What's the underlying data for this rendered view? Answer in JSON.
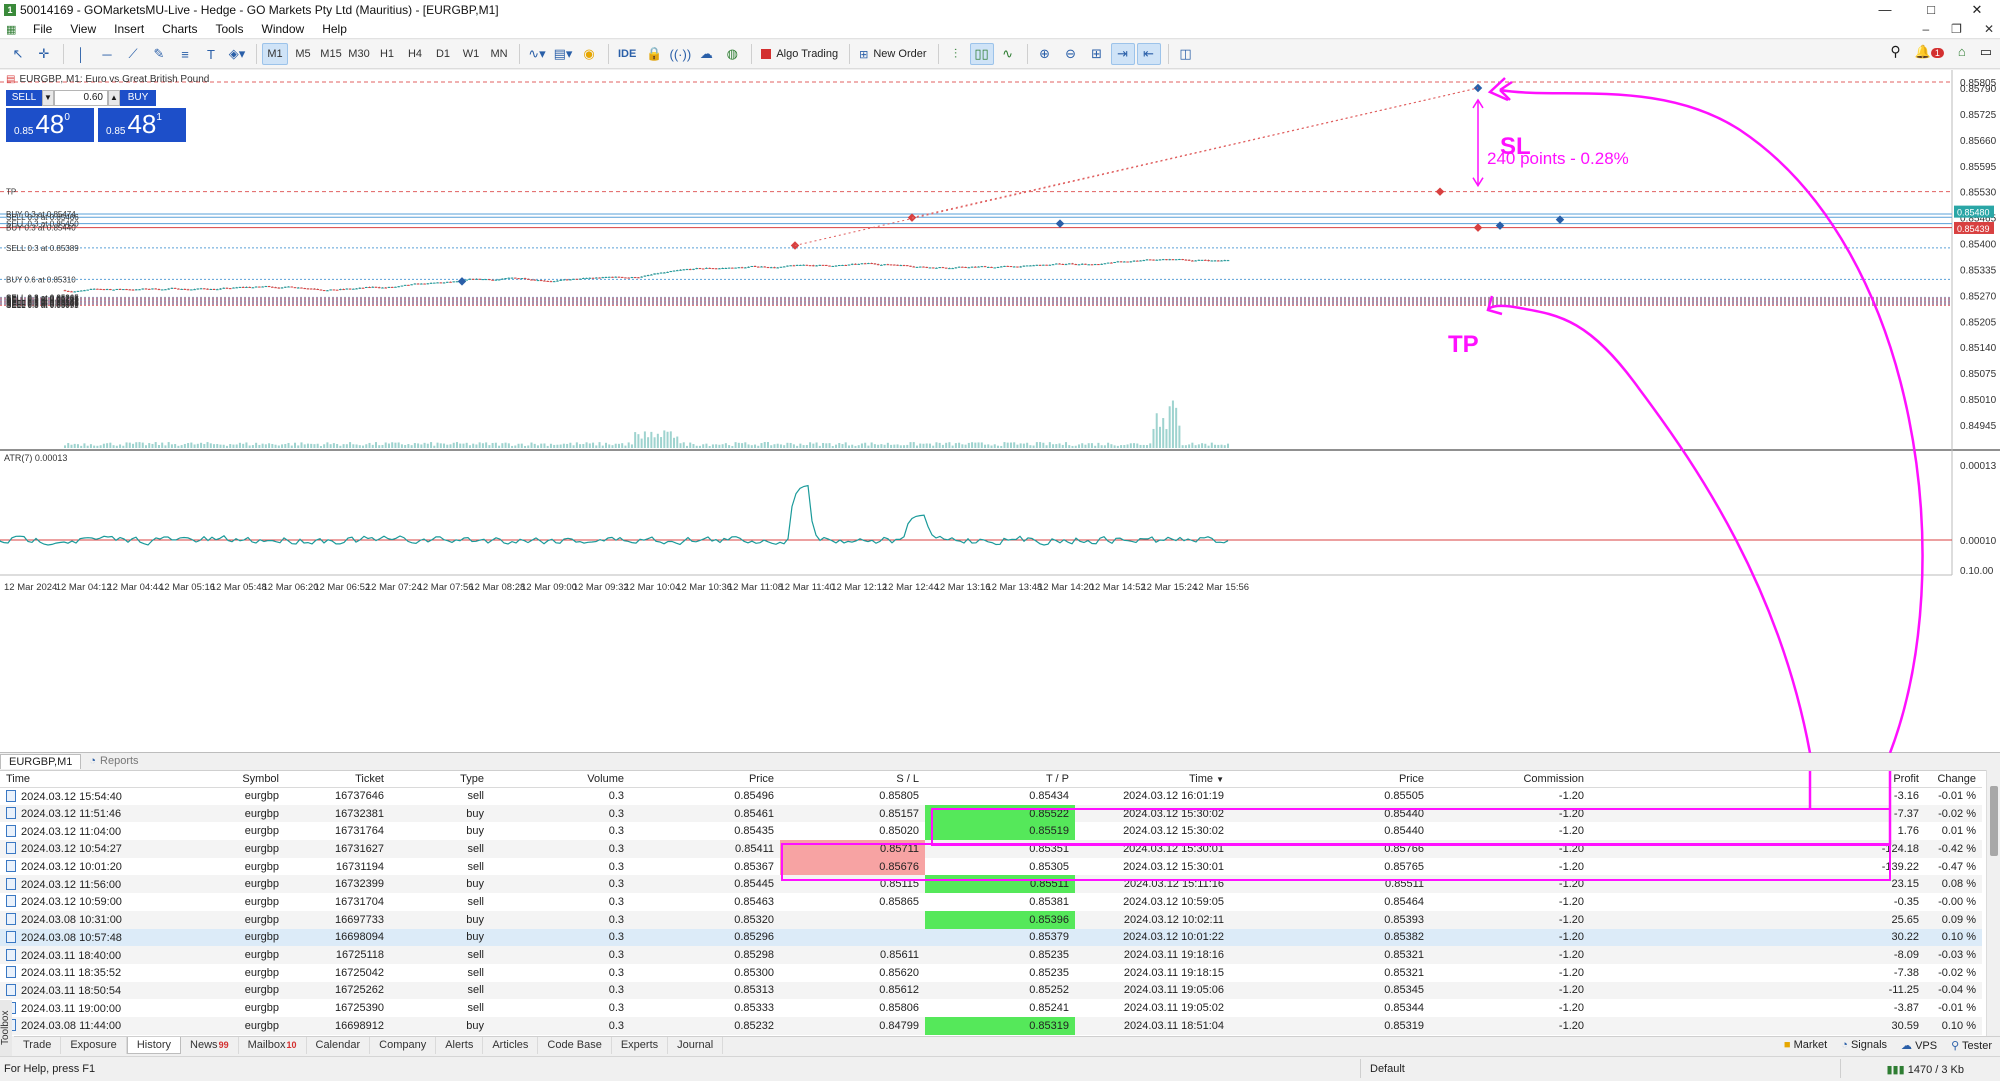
{
  "window": {
    "title": "50014169 - GOMarketsMU-Live - Hedge - GO Markets Pty Ltd (Mauritius) - [EURGBP,M1]",
    "controls": [
      "—",
      "□",
      "✕"
    ]
  },
  "menu": [
    "File",
    "View",
    "Insert",
    "Charts",
    "Tools",
    "Window",
    "Help"
  ],
  "toolbar": {
    "timeframes": [
      "M1",
      "M5",
      "M15",
      "M30",
      "H1",
      "H4",
      "D1",
      "W1",
      "MN"
    ],
    "active_timeframe": "M1",
    "ide_label": "IDE",
    "algo_trading_label": "Algo Trading",
    "new_order_label": "New Order",
    "notification_count": "1"
  },
  "chart": {
    "symbol_line": "EURGBP, M1:  Euro vs Great British Pound",
    "trade_panel": {
      "sell_label": "SELL",
      "buy_label": "BUY",
      "volume": "0.60",
      "sell_price_prefix": "0.85",
      "sell_price_big": "48",
      "sell_price_sup": "0",
      "buy_price_prefix": "0.85",
      "buy_price_big": "48",
      "buy_price_sup": "1"
    },
    "price_axis": [
      "0.85805",
      "0.85790",
      "0.85725",
      "0.85660",
      "0.85595",
      "0.85530",
      "0.85465",
      "0.85400",
      "0.85335",
      "0.85270",
      "0.85205",
      "0.85140",
      "0.85075",
      "0.85010",
      "0.84945"
    ],
    "current_price_labels": [
      "0.85480",
      "0.85439"
    ],
    "level_labels": [
      "TP",
      "BUY 0.3 at 0.85474",
      "SELL 0.3 at 0.85466",
      "SELL 0.3 at 0.85450",
      "BUY 0.3 at 0.85440",
      "SELL 0.3 at 0.85389",
      "BUY 0.6 at 0.85310",
      "SELL 0.3 at 0.85265",
      "SELL 0.3 at 0.85238",
      "SELL 0.3 at 0.85216",
      "SELL 0.3 at 0.85195",
      "SELL 0.3 at 0.85172",
      "SELL 0.3 at 0.85152",
      "SELL 0.3 at 0.85131",
      "SELL 0.3 at 0.85109",
      "SELL 0.3 at 0.85089",
      "SELL 0.3 at 0.85072",
      "SELL 0.3 at 0.85059"
    ],
    "indicator_label": "ATR(7) 0.00013",
    "indicator_axis": [
      "0.00013",
      "0.00010",
      "0.10.00"
    ],
    "time_axis": [
      "12 Mar 2024",
      "12 Mar 04:12",
      "12 Mar 04:44",
      "12 Mar 05:16",
      "12 Mar 05:48",
      "12 Mar 06:20",
      "12 Mar 06:52",
      "12 Mar 07:24",
      "12 Mar 07:56",
      "12 Mar 08:28",
      "12 Mar 09:00",
      "12 Mar 09:32",
      "12 Mar 10:04",
      "12 Mar 10:36",
      "12 Mar 11:08",
      "12 Mar 11:40",
      "12 Mar 12:12",
      "12 Mar 12:44",
      "12 Mar 13:16",
      "12 Mar 13:48",
      "12 Mar 14:20",
      "12 Mar 14:52",
      "12 Mar 15:24",
      "12 Mar 15:56"
    ],
    "annotations": {
      "sl": "SL",
      "tp": "TP",
      "distance": "240 points - 0.28%"
    },
    "colors": {
      "annotation": "#ff10ff",
      "bull": "#1a9a9a",
      "bear": "#d84040",
      "candle_wick": "#777777"
    }
  },
  "terminal": {
    "chart_tabs": [
      "EURGBP,M1",
      "Reports"
    ],
    "columns": [
      "Time",
      "Symbol",
      "Ticket",
      "Type",
      "Volume",
      "Price",
      "S / L",
      "T / P",
      "Time",
      "Price",
      "Commission",
      "Profit",
      "Change"
    ],
    "rows": [
      {
        "time": "2024.03.12 15:54:40",
        "symbol": "eurgbp",
        "ticket": "16737646",
        "type": "sell",
        "volume": "0.3",
        "price": "0.85496",
        "sl": "0.85805",
        "tp": "0.85434",
        "close_time": "2024.03.12 16:01:19",
        "close_price": "0.85505",
        "commission": "-1.20",
        "profit": "-3.16",
        "change": "-0.01 %"
      },
      {
        "time": "2024.03.12 11:51:46",
        "symbol": "eurgbp",
        "ticket": "16732381",
        "type": "buy",
        "volume": "0.3",
        "price": "0.85461",
        "sl": "0.85157",
        "tp": "0.85522",
        "close_time": "2024.03.12 15:30:02",
        "close_price": "0.85440",
        "commission": "-1.20",
        "profit": "-7.37",
        "change": "-0.02 %"
      },
      {
        "time": "2024.03.12 11:04:00",
        "symbol": "eurgbp",
        "ticket": "16731764",
        "type": "buy",
        "volume": "0.3",
        "price": "0.85435",
        "sl": "0.85020",
        "tp": "0.85519",
        "close_time": "2024.03.12 15:30:02",
        "close_price": "0.85440",
        "commission": "-1.20",
        "profit": "1.76",
        "change": "0.01 %"
      },
      {
        "time": "2024.03.12 10:54:27",
        "symbol": "eurgbp",
        "ticket": "16731627",
        "type": "sell",
        "volume": "0.3",
        "price": "0.85411",
        "sl": "0.85711",
        "tp": "0.85351",
        "close_time": "2024.03.12 15:30:01",
        "close_price": "0.85766",
        "commission": "-1.20",
        "profit": "-124.18",
        "change": "-0.42 %"
      },
      {
        "time": "2024.03.12 10:01:20",
        "symbol": "eurgbp",
        "ticket": "16731194",
        "type": "sell",
        "volume": "0.3",
        "price": "0.85367",
        "sl": "0.85676",
        "tp": "0.85305",
        "close_time": "2024.03.12 15:30:01",
        "close_price": "0.85765",
        "commission": "-1.20",
        "profit": "-139.22",
        "change": "-0.47 %"
      },
      {
        "time": "2024.03.12 11:56:00",
        "symbol": "eurgbp",
        "ticket": "16732399",
        "type": "buy",
        "volume": "0.3",
        "price": "0.85445",
        "sl": "0.85115",
        "tp": "0.85511",
        "close_time": "2024.03.12 15:11:16",
        "close_price": "0.85511",
        "commission": "-1.20",
        "profit": "23.15",
        "change": "0.08 %"
      },
      {
        "time": "2024.03.12 10:59:00",
        "symbol": "eurgbp",
        "ticket": "16731704",
        "type": "sell",
        "volume": "0.3",
        "price": "0.85463",
        "sl": "0.85865",
        "tp": "0.85381",
        "close_time": "2024.03.12 10:59:05",
        "close_price": "0.85464",
        "commission": "-1.20",
        "profit": "-0.35",
        "change": "-0.00 %"
      },
      {
        "time": "2024.03.08 10:31:00",
        "symbol": "eurgbp",
        "ticket": "16697733",
        "type": "buy",
        "volume": "0.3",
        "price": "0.85320",
        "sl": "",
        "tp": "0.85396",
        "close_time": "2024.03.12 10:02:11",
        "close_price": "0.85393",
        "commission": "-1.20",
        "profit": "25.65",
        "change": "0.09 %"
      },
      {
        "time": "2024.03.08 10:57:48",
        "symbol": "eurgbp",
        "ticket": "16698094",
        "type": "buy",
        "volume": "0.3",
        "price": "0.85296",
        "sl": "",
        "tp": "0.85379",
        "close_time": "2024.03.12 10:01:22",
        "close_price": "0.85382",
        "commission": "-1.20",
        "profit": "30.22",
        "change": "0.10 %"
      },
      {
        "time": "2024.03.11 18:40:00",
        "symbol": "eurgbp",
        "ticket": "16725118",
        "type": "sell",
        "volume": "0.3",
        "price": "0.85298",
        "sl": "0.85611",
        "tp": "0.85235",
        "close_time": "2024.03.11 19:18:16",
        "close_price": "0.85321",
        "commission": "-1.20",
        "profit": "-8.09",
        "change": "-0.03 %"
      },
      {
        "time": "2024.03.11 18:35:52",
        "symbol": "eurgbp",
        "ticket": "16725042",
        "type": "sell",
        "volume": "0.3",
        "price": "0.85300",
        "sl": "0.85620",
        "tp": "0.85235",
        "close_time": "2024.03.11 19:18:15",
        "close_price": "0.85321",
        "commission": "-1.20",
        "profit": "-7.38",
        "change": "-0.02 %"
      },
      {
        "time": "2024.03.11 18:50:54",
        "symbol": "eurgbp",
        "ticket": "16725262",
        "type": "sell",
        "volume": "0.3",
        "price": "0.85313",
        "sl": "0.85612",
        "tp": "0.85252",
        "close_time": "2024.03.11 19:05:06",
        "close_price": "0.85345",
        "commission": "-1.20",
        "profit": "-11.25",
        "change": "-0.04 %"
      },
      {
        "time": "2024.03.11 19:00:00",
        "symbol": "eurgbp",
        "ticket": "16725390",
        "type": "sell",
        "volume": "0.3",
        "price": "0.85333",
        "sl": "0.85806",
        "tp": "0.85241",
        "close_time": "2024.03.11 19:05:02",
        "close_price": "0.85344",
        "commission": "-1.20",
        "profit": "-3.87",
        "change": "-0.01 %"
      },
      {
        "time": "2024.03.08 11:44:00",
        "symbol": "eurgbp",
        "ticket": "16698912",
        "type": "buy",
        "volume": "0.3",
        "price": "0.85232",
        "sl": "0.84799",
        "tp": "0.85319",
        "close_time": "2024.03.11 18:51:04",
        "close_price": "0.85319",
        "commission": "-1.20",
        "profit": "30.59",
        "change": "0.10 %"
      }
    ],
    "toolbox_label": "Toolbox"
  },
  "bottom_tabs": [
    {
      "label": "Trade",
      "count": ""
    },
    {
      "label": "Exposure",
      "count": ""
    },
    {
      "label": "History",
      "count": ""
    },
    {
      "label": "News",
      "count": "99"
    },
    {
      "label": "Mailbox",
      "count": "10"
    },
    {
      "label": "Calendar",
      "count": ""
    },
    {
      "label": "Company",
      "count": ""
    },
    {
      "label": "Alerts",
      "count": ""
    },
    {
      "label": "Articles",
      "count": ""
    },
    {
      "label": "Code Base",
      "count": ""
    },
    {
      "label": "Experts",
      "count": ""
    },
    {
      "label": "Journal",
      "count": ""
    }
  ],
  "bottom_right": [
    "Market",
    "Signals",
    "VPS",
    "Tester"
  ],
  "status": {
    "left": "For Help, press F1",
    "middle": "Default",
    "right": "1470 / 3 Kb"
  }
}
